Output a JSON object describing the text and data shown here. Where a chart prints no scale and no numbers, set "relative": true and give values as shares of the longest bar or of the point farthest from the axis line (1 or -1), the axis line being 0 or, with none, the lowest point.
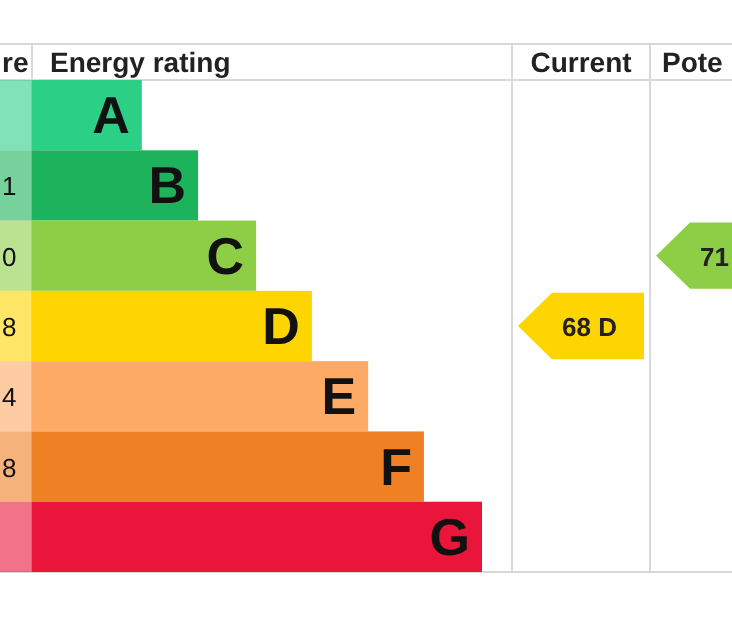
{
  "chart_data": {
    "type": "bar",
    "orientation": "horizontal",
    "relative": true,
    "title": "Energy rating",
    "categories": [
      "A",
      "B",
      "C",
      "D",
      "E",
      "F",
      "G"
    ],
    "values": [
      0.244,
      0.369,
      0.498,
      0.622,
      0.747,
      0.871,
      1
    ],
    "colors": [
      "#2ccf86",
      "#1db35c",
      "#8dce46",
      "#ffd500",
      "#fcaa65",
      "#ef8023",
      "#e9153b"
    ],
    "annotations": [
      "re",
      "Current",
      "Pote",
      "1",
      "0",
      "8",
      "4",
      "8",
      "68 D",
      "71"
    ]
  }
}
